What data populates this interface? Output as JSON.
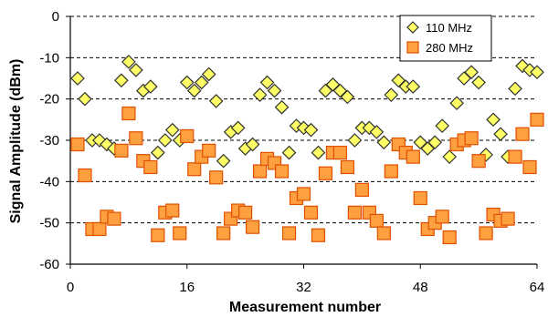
{
  "chart_data": {
    "type": "scatter",
    "title": "",
    "xlabel": "Measurement number",
    "ylabel": "Signal Amplitude (dBm)",
    "xlim": [
      0,
      64
    ],
    "ylim": [
      -60,
      0
    ],
    "xticks": [
      0,
      16,
      32,
      48,
      64
    ],
    "yticks": [
      0,
      -10,
      -20,
      -30,
      -40,
      -50,
      -60
    ],
    "grid": "horizontal dashed",
    "legend_position": "top-right",
    "series": [
      {
        "name": "110 MHz",
        "marker": "diamond",
        "color": "#FFFF66",
        "edge_color": "#333333",
        "x": [
          1,
          2,
          3,
          4,
          5,
          6,
          7,
          8,
          9,
          10,
          11,
          12,
          13,
          14,
          15,
          16,
          17,
          18,
          19,
          20,
          21,
          22,
          23,
          24,
          25,
          26,
          27,
          28,
          29,
          30,
          31,
          32,
          33,
          34,
          35,
          36,
          37,
          38,
          39,
          40,
          41,
          42,
          43,
          44,
          45,
          46,
          47,
          48,
          49,
          50,
          51,
          52,
          53,
          54,
          55,
          56,
          57,
          58,
          59,
          60,
          61,
          62,
          63,
          64
        ],
        "y": [
          -15,
          -20,
          -30,
          -30,
          -31,
          -32,
          -15.5,
          -11,
          -13,
          -18,
          -17,
          -33,
          -30,
          -27.5,
          -30,
          -16,
          -18,
          -16,
          -14,
          -20.5,
          -35,
          -28,
          -27,
          -32,
          -31,
          -19,
          -16,
          -18,
          -22,
          -33,
          -26.5,
          -27,
          -27.5,
          -33,
          -18,
          -16.5,
          -18,
          -19.5,
          -30,
          -27,
          -27,
          -28,
          -30.5,
          -19,
          -15.5,
          -17,
          -17,
          -30.5,
          -32,
          -30.5,
          -26.5,
          -34,
          -21,
          -15,
          -13.5,
          -16,
          -33.5,
          -25,
          -28.5,
          -34,
          -17.5,
          -12,
          -13,
          -13.5
        ]
      },
      {
        "name": "280 MHz",
        "marker": "square",
        "color": "#FFA040",
        "edge_color": "#E05000",
        "x": [
          1,
          2,
          3,
          4,
          5,
          6,
          7,
          8,
          9,
          10,
          11,
          12,
          13,
          14,
          15,
          16,
          17,
          18,
          19,
          20,
          21,
          22,
          23,
          24,
          25,
          26,
          27,
          28,
          29,
          30,
          31,
          32,
          33,
          34,
          35,
          36,
          37,
          38,
          39,
          40,
          41,
          42,
          43,
          44,
          45,
          46,
          47,
          48,
          49,
          50,
          51,
          52,
          53,
          54,
          55,
          56,
          57,
          58,
          59,
          60,
          61,
          62,
          63,
          64
        ],
        "y": [
          -31,
          -38.5,
          -51.5,
          -51.5,
          -48.5,
          -49,
          -32.5,
          -23.5,
          -29.5,
          -35,
          -36.5,
          -53,
          -47.5,
          -47,
          -52.5,
          -29,
          -37,
          -34,
          -32.5,
          -39,
          -52.5,
          -49,
          -47,
          -47.5,
          -51,
          -37.5,
          -34.5,
          -35.5,
          -37.5,
          -52.5,
          -44,
          -43,
          -47.5,
          -53,
          -38,
          -33,
          -33,
          -36.5,
          -47.5,
          -42,
          -47.5,
          -49.5,
          -52.5,
          -37.5,
          -31,
          -33,
          -34,
          -44,
          -51.5,
          -50,
          -48.5,
          -53.5,
          -31,
          -30,
          -29.5,
          -35,
          -52.5,
          -48,
          -49.5,
          -49,
          -34,
          -28.5,
          -36.5,
          -25
        ]
      }
    ]
  }
}
